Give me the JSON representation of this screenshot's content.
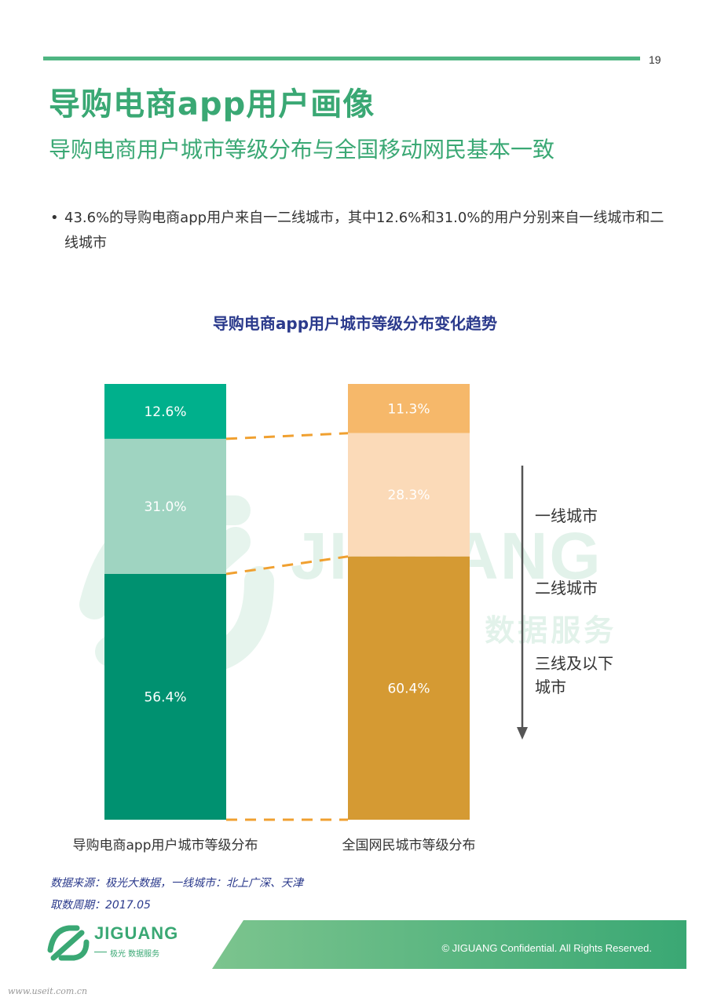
{
  "page_number": "19",
  "title": "导购电商app用户画像",
  "subtitle": "导购电商用户城市等级分布与全国移动网民基本一致",
  "bullet": "43.6%的导购电商app用户来自一二线城市，其中12.6%和31.0%的用户分别来自一线城市和二线城市",
  "chart_data": {
    "type": "bar",
    "stacked": true,
    "percent_stacked": true,
    "title": "导购电商app用户城市等级分布变化趋势",
    "categories": [
      "导购电商app用户城市等级分布",
      "全国网民城市等级分布"
    ],
    "series": [
      {
        "name": "一线城市",
        "values": [
          12.6,
          11.3
        ],
        "labels": [
          "12.6%",
          "11.3%"
        ]
      },
      {
        "name": "二线城市",
        "values": [
          31.0,
          28.3
        ],
        "labels": [
          "31.0%",
          "28.3%"
        ]
      },
      {
        "name": "三线及以下城市",
        "values": [
          56.4,
          60.4
        ],
        "labels": [
          "56.4%",
          "60.4%"
        ]
      }
    ],
    "colors": {
      "left": [
        "#00b08c",
        "#9fd4c1",
        "#009170"
      ],
      "right": [
        "#f6b86a",
        "#fbdab8",
        "#d59a33"
      ],
      "connector": "#f0a030"
    },
    "legend_items": [
      "一线城市",
      "二线城市",
      "三线及以下",
      "城市"
    ],
    "legend_position": "right"
  },
  "source": "数据来源：极光大数据，一线城市：北上广深、天津",
  "period": "取数周期：2017.05",
  "footer": {
    "brand": "JIGUANG",
    "brand_sub": "极光 数据服务",
    "copyright": "© JIGUANG Confidential. All Rights Reserved.",
    "url": "www.useit.com.cn"
  },
  "watermark": {
    "text": "JIGUANG",
    "sub": "极光 数据服务"
  }
}
